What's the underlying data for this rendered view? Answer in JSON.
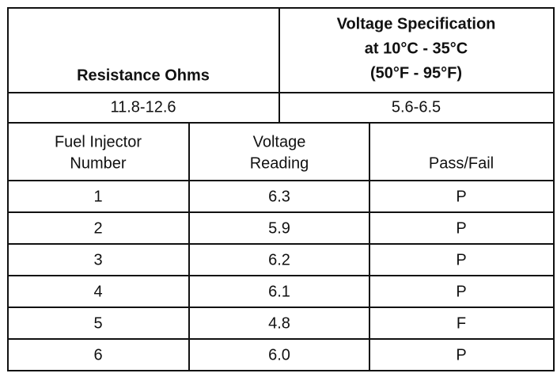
{
  "table": {
    "header": {
      "resistance": "Resistance Ohms",
      "voltage_spec": [
        "Voltage Specification",
        "at 10°C - 35°C",
        "(50°F - 95°F)"
      ]
    },
    "spec_row": {
      "resistance": "11.8-12.6",
      "voltage": "5.6-6.5"
    },
    "columns": [
      [
        "Fuel Injector",
        "Number"
      ],
      [
        "Voltage",
        "Reading"
      ],
      [
        "Pass/Fail"
      ]
    ],
    "rows": [
      [
        "1",
        "6.3",
        "P"
      ],
      [
        "2",
        "5.9",
        "P"
      ],
      [
        "3",
        "6.2",
        "P"
      ],
      [
        "4",
        "6.1",
        "P"
      ],
      [
        "5",
        "4.8",
        "F"
      ],
      [
        "6",
        "6.0",
        "P"
      ]
    ]
  }
}
